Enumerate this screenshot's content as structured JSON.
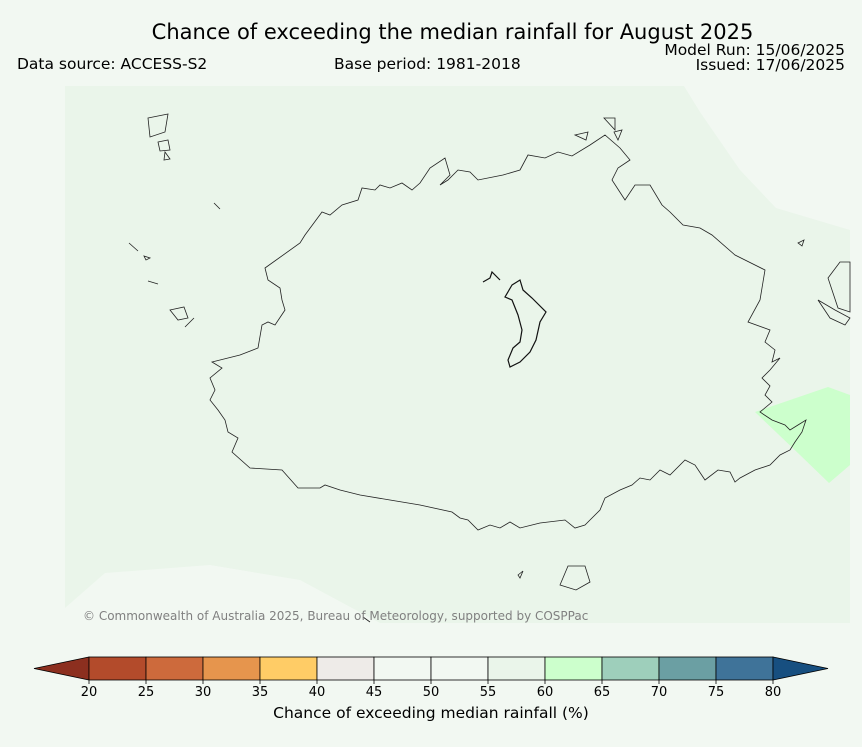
{
  "header": {
    "title": "Chance of exceeding the median rainfall for August 2025",
    "data_source": "Data source: ACCESS-S2",
    "base_period": "Base period: 1981-2018",
    "model_run": "Model Run: 15/06/2025",
    "issued": "Issued: 17/06/2025"
  },
  "map": {
    "copyright": "© Commonwealth of Australia 2025, Bureau of Meteorology, supported by COSPPac",
    "region_colors": {
      "background": "#f2f8f2",
      "main_field_50_55": "#eaf5ea",
      "field_45_50": "#f2f8f2",
      "field_60_65": "#ccffcc"
    }
  },
  "legend": {
    "label": "Chance of exceeding median rainfall (%)",
    "ticks": [
      "20",
      "25",
      "30",
      "35",
      "40",
      "45",
      "50",
      "55",
      "60",
      "65",
      "70",
      "75",
      "80"
    ],
    "colors": [
      "#b34b2b",
      "#cd6a3c",
      "#e6954d",
      "#ffcc66",
      "#eeebe8",
      "#f2f8f2",
      "#f2f8f2",
      "#eaf5ea",
      "#ccffcc",
      "#9ecfbb",
      "#6b9fa3",
      "#3f7399"
    ],
    "under_color": "#8c2f1f",
    "over_color": "#174f80"
  }
}
